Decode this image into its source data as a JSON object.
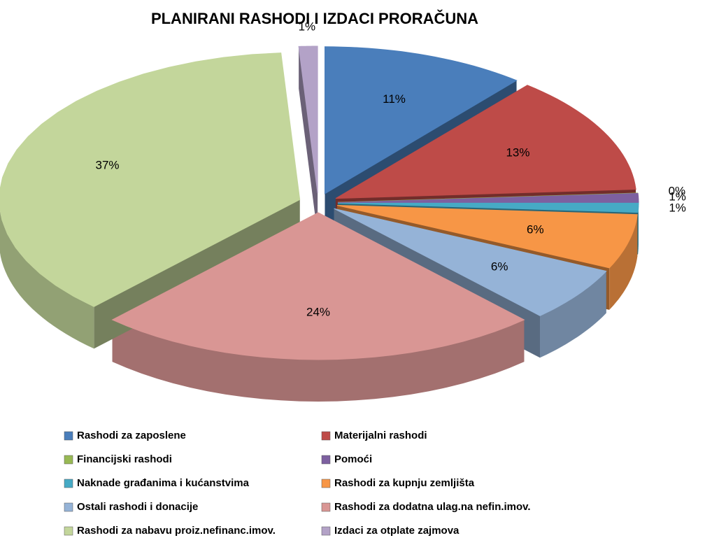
{
  "chart_data": {
    "type": "pie3d",
    "title": "PLANIRANI  RASHODI I IZDACI PRORAČUNA",
    "categories": [
      "Rashodi za zaposlene",
      "Materijalni rashodi",
      "Financijski rashodi",
      "Pomoći",
      "Naknade građanima i kućanstvima",
      "Rashodi za kupnju zemljišta",
      "Ostali rashodi i donacije",
      "Rashodi za dodatna ulag.na nefin.imov.",
      "Rashodi za nabavu proiz.nefinanc.imov.",
      "Izdaci za otplate zajmova"
    ],
    "values": [
      11,
      13,
      0,
      1,
      1,
      6,
      6,
      24,
      37,
      1
    ],
    "value_labels": [
      "11%",
      "13%",
      "0%",
      "1%",
      "1%",
      "6%",
      "6%",
      "24%",
      "37%",
      "1%"
    ],
    "colors": [
      "#4a7ebb",
      "#be4b48",
      "#98b954",
      "#7d60a0",
      "#46aac5",
      "#f79646",
      "#95b3d7",
      "#d99694",
      "#c3d69b",
      "#b3a2c7"
    ],
    "legend": "bottom"
  }
}
